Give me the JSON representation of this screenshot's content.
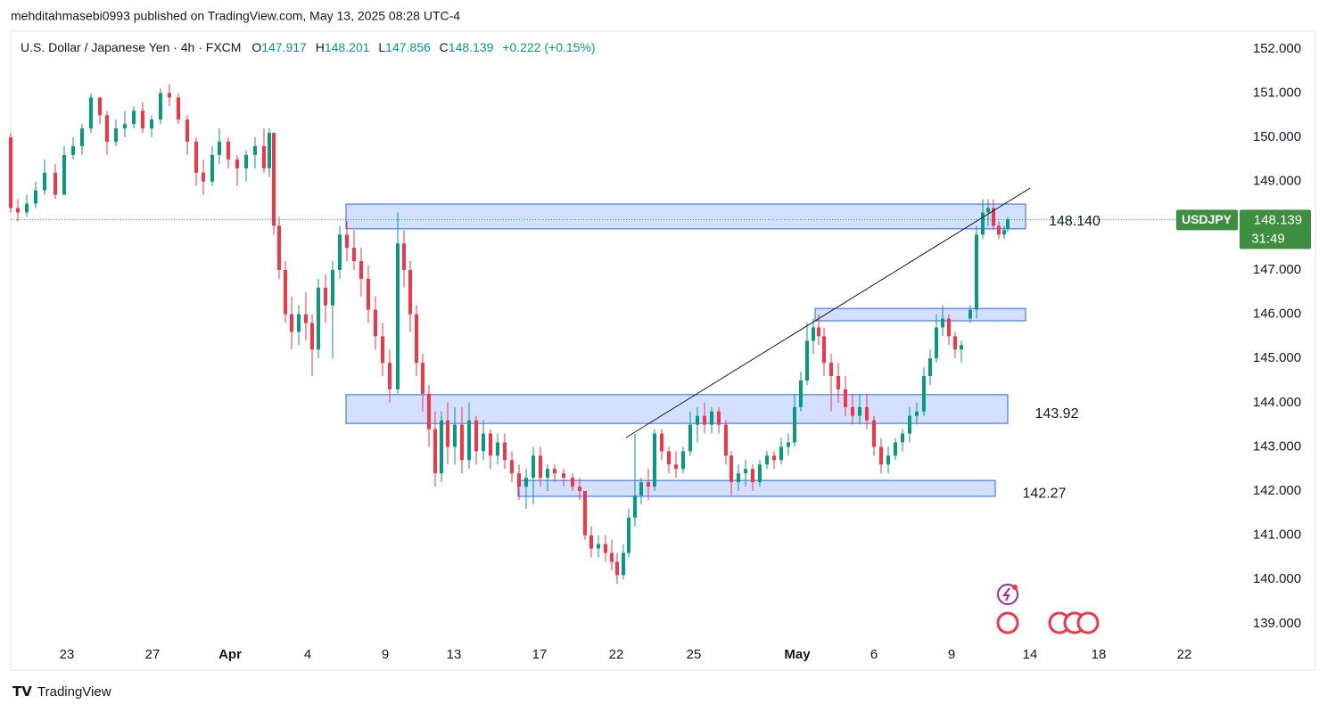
{
  "header": {
    "publisher": "mehditahmasebi0993 published on TradingView.com, May 13, 2025 08:28 UTC-4",
    "symbol": "U.S. Dollar / Japanese Yen · 4h · FXCM",
    "ohlc": [
      {
        "key": "O",
        "value": "147.917"
      },
      {
        "key": "H",
        "value": "148.201"
      },
      {
        "key": "L",
        "value": "147.856"
      },
      {
        "key": "C",
        "value": "148.139"
      }
    ],
    "change": "+0.222 (+0.15%)"
  },
  "footer": "TradingView",
  "chart_data": {
    "type": "candlestick",
    "up_color": "#089981",
    "down_color": "#f23645",
    "xlim": [
      0,
      1368
    ],
    "ylim": [
      137.95,
      152.4
    ],
    "xticks": [
      {
        "value": 63,
        "label": "23"
      },
      {
        "value": 159,
        "label": "27"
      },
      {
        "value": 246,
        "label": "Apr"
      },
      {
        "value": 333,
        "label": "4"
      },
      {
        "value": 420,
        "label": "9"
      },
      {
        "value": 497,
        "label": "13"
      },
      {
        "value": 593,
        "label": "17"
      },
      {
        "value": 679,
        "label": "22"
      },
      {
        "value": 766,
        "label": "25"
      },
      {
        "value": 882,
        "label": "May"
      },
      {
        "value": 968,
        "label": "6"
      },
      {
        "value": 1055,
        "label": "9"
      },
      {
        "value": 1143,
        "label": "14"
      },
      {
        "value": 1220,
        "label": "18"
      },
      {
        "value": 1316,
        "label": "22"
      }
    ],
    "yticks": [
      {
        "value": 139,
        "label": "139.000"
      },
      {
        "value": 140,
        "label": "140.000"
      },
      {
        "value": 141,
        "label": "141.000"
      },
      {
        "value": 142,
        "label": "142.000"
      },
      {
        "value": 143,
        "label": "143.000"
      },
      {
        "value": 144,
        "label": "144.000"
      },
      {
        "value": 145,
        "label": "145.000"
      },
      {
        "value": 146,
        "label": "146.000"
      },
      {
        "value": 147,
        "label": "147.000"
      },
      {
        "value": 148,
        "label": "148.000"
      },
      {
        "value": 149,
        "label": "149.000"
      },
      {
        "value": 150,
        "label": "150.000"
      },
      {
        "value": 151,
        "label": "151.000"
      },
      {
        "value": 152,
        "label": "152.000"
      }
    ],
    "x": [
      0,
      8,
      18,
      28,
      38,
      50,
      60,
      70,
      80,
      90,
      100,
      108,
      118,
      128,
      138,
      148,
      158,
      168,
      178,
      188,
      198,
      208,
      216,
      226,
      234,
      244,
      254,
      264,
      274,
      284,
      290,
      295,
      301,
      308,
      315,
      323,
      331,
      338,
      345,
      353,
      361,
      369,
      377,
      385,
      393,
      401,
      409,
      417,
      425,
      434,
      441,
      448,
      455,
      462,
      469,
      476,
      483,
      490,
      498,
      506,
      514,
      522,
      530,
      538,
      546,
      554,
      562,
      570,
      578,
      586,
      594,
      602,
      610,
      620,
      630,
      638,
      644,
      651,
      659,
      667,
      674,
      680,
      687,
      693,
      700,
      707,
      715,
      722,
      730,
      738,
      746,
      754,
      762,
      770,
      778,
      786,
      794,
      802,
      808,
      816,
      824,
      832,
      840,
      848,
      856,
      864,
      872,
      879,
      886,
      893,
      900,
      906,
      912,
      920,
      928,
      936,
      944,
      952,
      960,
      968,
      976,
      984,
      992,
      1000,
      1008,
      1016,
      1024,
      1031,
      1038,
      1045,
      1052,
      1059,
      1066,
      1076,
      1083,
      1090,
      1096,
      1102,
      1108,
      1114,
      1118
    ],
    "open": [
      150.0,
      148.4,
      148.3,
      148.5,
      148.8,
      149.2,
      148.7,
      149.6,
      149.8,
      150.2,
      150.9,
      150.5,
      149.9,
      150.2,
      150.3,
      150.6,
      150.2,
      150.4,
      151.0,
      150.9,
      150.4,
      149.9,
      149.2,
      149.0,
      149.6,
      149.9,
      149.5,
      149.3,
      149.6,
      149.8,
      149.3,
      150.1,
      148.0,
      147.0,
      146.0,
      145.6,
      146.0,
      145.8,
      145.2,
      146.6,
      146.2,
      147.0,
      147.8,
      147.5,
      147.2,
      146.8,
      146.1,
      145.5,
      144.9,
      144.3,
      147.6,
      147.0,
      146.0,
      144.9,
      144.2,
      143.4,
      142.4,
      143.6,
      143.0,
      143.5,
      142.7,
      143.6,
      142.9,
      143.3,
      142.8,
      143.1,
      142.7,
      142.4,
      142.1,
      142.3,
      142.8,
      142.3,
      142.5,
      142.4,
      142.3,
      142.1,
      142.0,
      141.0,
      140.7,
      140.8,
      140.6,
      140.4,
      140.1,
      140.6,
      141.4,
      141.9,
      142.2,
      142.1,
      143.3,
      142.9,
      142.6,
      142.5,
      142.9,
      143.5,
      143.7,
      143.5,
      143.8,
      143.5,
      142.8,
      142.2,
      142.4,
      142.5,
      142.2,
      142.6,
      142.8,
      142.7,
      143.0,
      143.1,
      143.9,
      144.5,
      145.4,
      145.7,
      145.5,
      144.9,
      144.6,
      144.3,
      143.9,
      143.7,
      143.9,
      143.6,
      143.0,
      142.6,
      142.8,
      143.1,
      143.3,
      143.7,
      143.8,
      144.6,
      145.0,
      145.7,
      145.9,
      145.5,
      145.2,
      145.9,
      146.1,
      147.8,
      148.3,
      148.4,
      148.0,
      147.8,
      147.917
    ],
    "high": [
      150.1,
      148.6,
      148.7,
      149.0,
      149.5,
      149.4,
      149.8,
      150.0,
      150.3,
      151.0,
      150.9,
      150.6,
      150.4,
      150.6,
      150.7,
      150.8,
      150.5,
      151.1,
      151.2,
      151.0,
      150.5,
      150.0,
      149.5,
      149.8,
      150.2,
      150.0,
      149.6,
      149.7,
      150.0,
      150.2,
      150.2,
      150.1,
      148.2,
      147.2,
      146.4,
      146.2,
      146.5,
      146.0,
      146.8,
      146.9,
      147.2,
      148.0,
      148.1,
      147.9,
      147.5,
      147.1,
      146.4,
      145.8,
      145.2,
      148.3,
      147.9,
      147.2,
      146.2,
      145.1,
      144.4,
      143.8,
      143.8,
      144.0,
      143.9,
      143.9,
      144.0,
      143.7,
      143.6,
      143.4,
      143.3,
      143.3,
      142.9,
      142.6,
      142.5,
      143.0,
      143.0,
      142.6,
      142.6,
      142.5,
      142.4,
      142.3,
      142.0,
      141.2,
      141.0,
      141.0,
      140.9,
      140.6,
      140.8,
      141.6,
      143.3,
      142.3,
      142.5,
      143.4,
      143.4,
      143.0,
      142.9,
      143.0,
      143.8,
      143.9,
      144.0,
      143.9,
      143.9,
      143.6,
      142.9,
      142.6,
      142.7,
      142.6,
      142.7,
      142.9,
      142.9,
      143.2,
      143.3,
      144.2,
      144.7,
      145.8,
      145.9,
      146.0,
      145.7,
      145.1,
      144.9,
      144.6,
      144.2,
      144.2,
      144.2,
      143.7,
      143.2,
      143.0,
      143.2,
      143.4,
      143.9,
      144.0,
      144.8,
      145.2,
      146.0,
      146.2,
      146.0,
      145.6,
      145.4,
      146.2,
      148.0,
      148.6,
      148.6,
      148.6,
      148.1,
      148.0,
      148.201
    ],
    "low": [
      148.3,
      148.1,
      148.2,
      148.4,
      148.7,
      148.6,
      148.7,
      149.5,
      149.6,
      150.1,
      150.3,
      149.6,
      149.8,
      150.0,
      150.2,
      150.1,
      150.0,
      150.3,
      150.7,
      150.3,
      149.6,
      148.9,
      148.7,
      148.9,
      149.4,
      149.3,
      148.9,
      149.0,
      149.3,
      149.2,
      149.1,
      147.8,
      146.8,
      145.8,
      145.2,
      145.3,
      145.4,
      144.6,
      145.0,
      145.8,
      145.0,
      146.8,
      147.2,
      147.0,
      146.4,
      145.8,
      145.2,
      144.6,
      144.0,
      144.2,
      146.6,
      145.6,
      144.6,
      143.8,
      143.0,
      142.1,
      142.2,
      142.6,
      142.6,
      142.4,
      142.5,
      142.6,
      142.7,
      142.5,
      142.6,
      142.5,
      142.2,
      141.8,
      141.6,
      141.7,
      142.1,
      142.0,
      142.2,
      142.1,
      142.0,
      141.8,
      140.9,
      140.5,
      140.5,
      140.4,
      140.2,
      139.9,
      140.0,
      140.5,
      141.2,
      141.7,
      141.8,
      142.0,
      142.7,
      142.4,
      142.3,
      142.4,
      142.8,
      143.1,
      143.3,
      143.3,
      143.3,
      142.6,
      141.9,
      142.0,
      142.1,
      142.0,
      142.1,
      142.5,
      142.5,
      142.6,
      142.8,
      143.0,
      143.8,
      144.4,
      145.1,
      145.3,
      144.6,
      143.8,
      144.0,
      143.7,
      143.5,
      143.5,
      143.4,
      142.8,
      142.4,
      142.4,
      142.7,
      142.9,
      143.1,
      143.5,
      143.7,
      144.4,
      144.9,
      145.5,
      145.3,
      145.0,
      144.9,
      145.8,
      145.9,
      147.7,
      148.0,
      147.9,
      147.7,
      147.7,
      147.856
    ],
    "close": [
      148.4,
      148.3,
      148.5,
      148.8,
      149.2,
      148.7,
      149.6,
      149.8,
      150.2,
      150.9,
      150.5,
      149.9,
      150.2,
      150.3,
      150.6,
      150.2,
      150.4,
      151.0,
      150.9,
      150.4,
      149.9,
      149.2,
      149.0,
      149.6,
      149.9,
      149.5,
      149.3,
      149.6,
      149.8,
      149.3,
      150.1,
      148.0,
      147.0,
      146.0,
      145.6,
      146.0,
      145.8,
      145.2,
      146.6,
      146.2,
      147.0,
      147.8,
      147.5,
      147.2,
      146.8,
      146.1,
      145.5,
      144.9,
      144.3,
      147.6,
      147.0,
      146.0,
      144.9,
      144.2,
      143.4,
      142.4,
      143.6,
      143.0,
      143.5,
      142.7,
      143.6,
      142.9,
      143.3,
      142.8,
      143.1,
      142.7,
      142.4,
      142.1,
      142.3,
      142.8,
      142.3,
      142.5,
      142.4,
      142.3,
      142.1,
      142.0,
      141.0,
      140.7,
      140.8,
      140.6,
      140.4,
      140.1,
      140.6,
      141.4,
      141.9,
      142.2,
      142.1,
      143.3,
      142.9,
      142.6,
      142.5,
      142.9,
      143.5,
      143.7,
      143.5,
      143.8,
      143.5,
      142.8,
      142.2,
      142.4,
      142.5,
      142.2,
      142.6,
      142.8,
      142.7,
      143.0,
      143.1,
      143.9,
      144.5,
      145.4,
      145.7,
      145.5,
      144.9,
      144.6,
      144.3,
      143.9,
      143.7,
      143.9,
      143.6,
      143.0,
      142.6,
      142.8,
      143.1,
      143.3,
      143.7,
      143.8,
      144.6,
      145.0,
      145.7,
      145.9,
      145.5,
      145.2,
      145.3,
      146.1,
      147.8,
      148.3,
      148.4,
      148.0,
      147.8,
      147.9,
      148.139
    ],
    "zones": [
      {
        "x0": 376,
        "x1": 1138,
        "top": 148.49,
        "bottom": 147.93,
        "label": "148.140"
      },
      {
        "x0": 902,
        "x1": 1138,
        "top": 146.13,
        "bottom": 145.85
      },
      {
        "x0": 376,
        "x1": 1118,
        "top": 144.18,
        "bottom": 143.53,
        "label": "143.92"
      },
      {
        "x0": 569,
        "x1": 1104,
        "top": 142.24,
        "bottom": 141.88,
        "label": "142.27"
      }
    ],
    "trendline": {
      "x": [
        690,
        1143
      ],
      "y": [
        143.21,
        148.85
      ]
    },
    "last_price": {
      "symbol": "USDJPY",
      "value": 148.139,
      "countdown": "31:49"
    }
  }
}
